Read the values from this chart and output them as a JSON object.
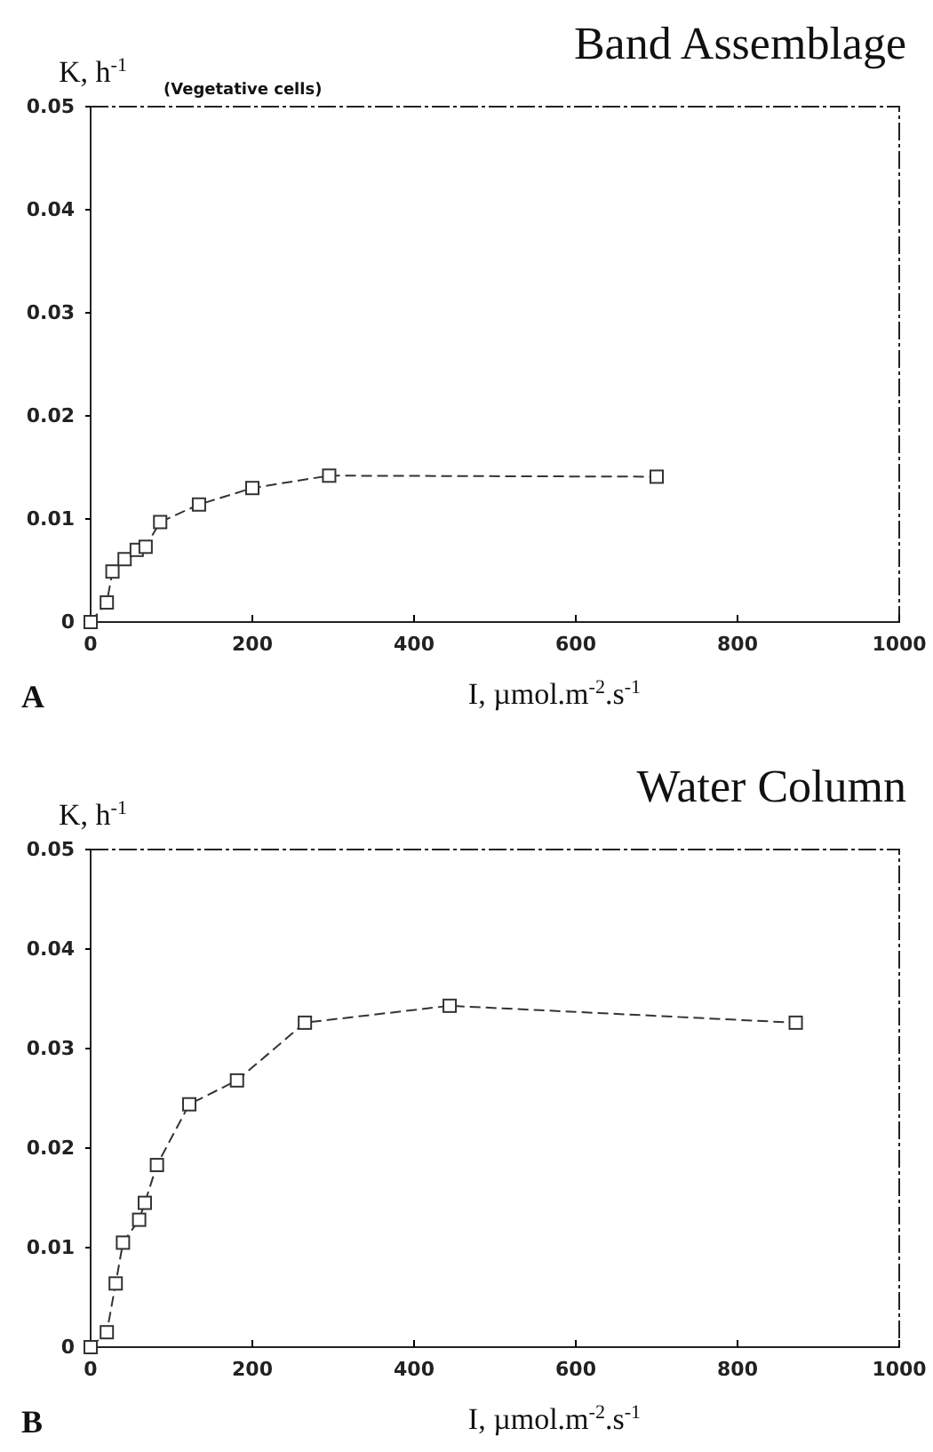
{
  "chart_data": [
    {
      "type": "line",
      "title": "Band Assemblage",
      "xlabel": "I, µmol.m$^{-2}$.s$^{-1}$",
      "ylabel": "K, h$^{-1}$",
      "annotations": [
        "(Vegetative cells)",
        "A"
      ],
      "series": [
        {
          "color": "#333333",
          "x": [
            0,
            20,
            23,
            27,
            42,
            57,
            68,
            86,
            134,
            200,
            295,
            700
          ],
          "values": [
            0,
            0.0019,
            null,
            0.0049,
            0.0061,
            0.007,
            0.0073,
            0.0097,
            0.0114,
            0.013,
            0.0142,
            0.0141
          ]
        }
      ],
      "xlim": [
        0,
        1000
      ],
      "ylim": [
        0,
        0.05
      ],
      "xticks": [
        0,
        200,
        400,
        600,
        800,
        1000
      ],
      "yticks": [
        0,
        0.01,
        0.02,
        0.03,
        0.04,
        0.05
      ],
      "marker": "square",
      "line_style": "dashed"
    },
    {
      "type": "line",
      "title": "Water Column",
      "xlabel": "I, µmol.m$^{-2}$.s$^{-1}$",
      "ylabel": "K, h$^{-1}$",
      "annotations": [
        "B"
      ],
      "series": [
        {
          "color": "#333333",
          "x": [
            0,
            20,
            31,
            40,
            60,
            67,
            82,
            122,
            181,
            265,
            444,
            872
          ],
          "values": [
            0,
            0.0015,
            0.0064,
            0.0105,
            0.0128,
            0.0145,
            0.0183,
            0.0244,
            0.0268,
            0.0326,
            0.0343,
            0.0326
          ]
        }
      ],
      "xlim": [
        0,
        1000
      ],
      "ylim": [
        0,
        0.05
      ],
      "xticks": [
        0,
        200,
        400,
        600,
        800,
        1000
      ],
      "yticks": [
        0,
        0.01,
        0.02,
        0.03,
        0.04,
        0.05
      ],
      "marker": "square",
      "line_style": "dashed"
    }
  ]
}
